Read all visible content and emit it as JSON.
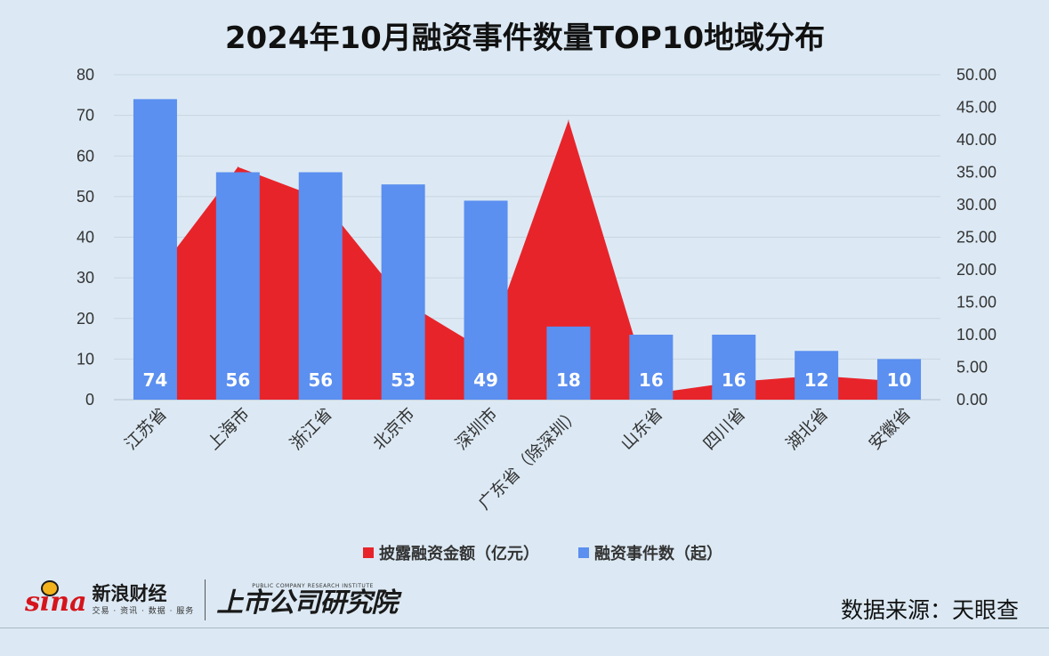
{
  "chart_data": {
    "type": "bar+area",
    "title": "2024年10月融资事件数量TOP10地域分布",
    "categories": [
      "江苏省",
      "上海市",
      "浙江省",
      "北京市",
      "深圳市",
      "广东省（除深圳）",
      "山东省",
      "四川省",
      "湖北省",
      "安徽省"
    ],
    "series": [
      {
        "name": "融资事件数（起）",
        "kind": "bar",
        "axis": "left",
        "color": "#5b8ff0",
        "values": [
          74,
          56,
          56,
          53,
          49,
          18,
          16,
          16,
          12,
          10
        ],
        "labels": [
          "74",
          "56",
          "56",
          "53",
          "49",
          "18",
          "16",
          "16",
          "12",
          "10"
        ]
      },
      {
        "name": "披露融资金额（亿元）",
        "kind": "area",
        "axis": "right",
        "color": "#e8242b",
        "values": [
          19.0,
          35.8,
          31.0,
          15.2,
          7.5,
          43.0,
          0.9,
          2.7,
          3.7,
          2.8
        ]
      }
    ],
    "y_left": {
      "min": 0,
      "max": 80,
      "ticks": [
        "0",
        "10",
        "20",
        "30",
        "40",
        "50",
        "60",
        "70",
        "80"
      ]
    },
    "y_right": {
      "min": 0,
      "max": 50,
      "ticks": [
        "0.00",
        "5.00",
        "10.00",
        "15.00",
        "20.00",
        "25.00",
        "30.00",
        "35.00",
        "40.00",
        "45.00",
        "50.00"
      ]
    },
    "grid": true,
    "legend_position": "bottom"
  },
  "branding": {
    "sina_word": "sina",
    "sina_name": "新浪财经",
    "sina_sub": "交易 · 资讯 · 数据 · 服务",
    "institute_en": "PUBLIC COMPANY RESEARCH INSTITUTE",
    "institute_cn": "上市公司研究院"
  },
  "source": "数据来源：天眼查"
}
